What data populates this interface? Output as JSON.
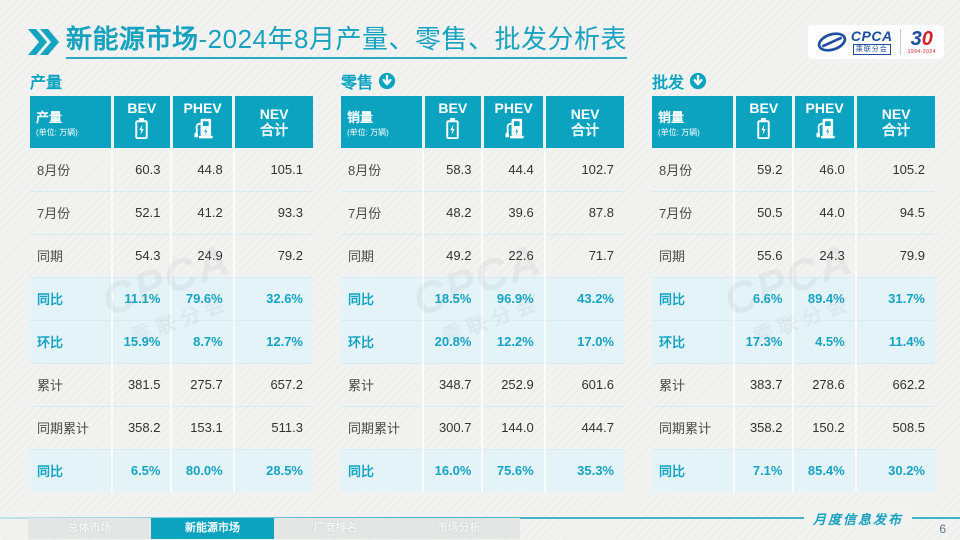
{
  "header": {
    "title_bold": "新能源市场",
    "title_rest": "-2024年8月产量、零售、批发分析表",
    "logo": {
      "cpca": "CPCA",
      "cpca_sub": "乘联分会",
      "anniv_3": "3",
      "anniv_0": "0",
      "anniv_years": "1994-2024"
    }
  },
  "watermark": {
    "line1": "CPCA",
    "line2": "乘联分会"
  },
  "tables": [
    {
      "section": "产量",
      "arrow": false,
      "corner_label": "产量",
      "corner_unit": "(单位: 万辆)",
      "columns": [
        {
          "label": "BEV",
          "icon": "battery-icon"
        },
        {
          "label": "PHEV",
          "icon": "ev-charger-icon"
        },
        {
          "label": "NEV",
          "sub": "合计"
        }
      ],
      "rows": [
        {
          "label": "8月份",
          "values": [
            "60.3",
            "44.8",
            "105.1"
          ],
          "highlight": false
        },
        {
          "label": "7月份",
          "values": [
            "52.1",
            "41.2",
            "93.3"
          ],
          "highlight": false
        },
        {
          "label": "同期",
          "values": [
            "54.3",
            "24.9",
            "79.2"
          ],
          "highlight": false
        },
        {
          "label": "同比",
          "values": [
            "11.1%",
            "79.6%",
            "32.6%"
          ],
          "highlight": true
        },
        {
          "label": "环比",
          "values": [
            "15.9%",
            "8.7%",
            "12.7%"
          ],
          "highlight": true
        },
        {
          "label": "累计",
          "values": [
            "381.5",
            "275.7",
            "657.2"
          ],
          "highlight": false
        },
        {
          "label": "同期累计",
          "values": [
            "358.2",
            "153.1",
            "511.3"
          ],
          "highlight": false
        },
        {
          "label": "同比",
          "values": [
            "6.5%",
            "80.0%",
            "28.5%"
          ],
          "highlight": true
        }
      ]
    },
    {
      "section": "零售",
      "arrow": true,
      "corner_label": "销量",
      "corner_unit": "(单位: 万辆)",
      "columns": [
        {
          "label": "BEV",
          "icon": "battery-icon"
        },
        {
          "label": "PHEV",
          "icon": "ev-charger-icon"
        },
        {
          "label": "NEV",
          "sub": "合计"
        }
      ],
      "rows": [
        {
          "label": "8月份",
          "values": [
            "58.3",
            "44.4",
            "102.7"
          ],
          "highlight": false
        },
        {
          "label": "7月份",
          "values": [
            "48.2",
            "39.6",
            "87.8"
          ],
          "highlight": false
        },
        {
          "label": "同期",
          "values": [
            "49.2",
            "22.6",
            "71.7"
          ],
          "highlight": false
        },
        {
          "label": "同比",
          "values": [
            "18.5%",
            "96.9%",
            "43.2%"
          ],
          "highlight": true
        },
        {
          "label": "环比",
          "values": [
            "20.8%",
            "12.2%",
            "17.0%"
          ],
          "highlight": true
        },
        {
          "label": "累计",
          "values": [
            "348.7",
            "252.9",
            "601.6"
          ],
          "highlight": false
        },
        {
          "label": "同期累计",
          "values": [
            "300.7",
            "144.0",
            "444.7"
          ],
          "highlight": false
        },
        {
          "label": "同比",
          "values": [
            "16.0%",
            "75.6%",
            "35.3%"
          ],
          "highlight": true
        }
      ]
    },
    {
      "section": "批发",
      "arrow": true,
      "corner_label": "销量",
      "corner_unit": "(单位: 万辆)",
      "columns": [
        {
          "label": "BEV",
          "icon": "battery-icon"
        },
        {
          "label": "PHEV",
          "icon": "ev-charger-icon"
        },
        {
          "label": "NEV",
          "sub": "合计"
        }
      ],
      "rows": [
        {
          "label": "8月份",
          "values": [
            "59.2",
            "46.0",
            "105.2"
          ],
          "highlight": false
        },
        {
          "label": "7月份",
          "values": [
            "50.5",
            "44.0",
            "94.5"
          ],
          "highlight": false
        },
        {
          "label": "同期",
          "values": [
            "55.6",
            "24.3",
            "79.9"
          ],
          "highlight": false
        },
        {
          "label": "同比",
          "values": [
            "6.6%",
            "89.4%",
            "31.7%"
          ],
          "highlight": true
        },
        {
          "label": "环比",
          "values": [
            "17.3%",
            "4.5%",
            "11.4%"
          ],
          "highlight": true
        },
        {
          "label": "累计",
          "values": [
            "383.7",
            "278.6",
            "662.2"
          ],
          "highlight": false
        },
        {
          "label": "同期累计",
          "values": [
            "358.2",
            "150.2",
            "508.5"
          ],
          "highlight": false
        },
        {
          "label": "同比",
          "values": [
            "7.1%",
            "85.4%",
            "30.2%"
          ],
          "highlight": true
        }
      ]
    }
  ],
  "footer": {
    "tabs": [
      {
        "label": "总体市场",
        "active": false
      },
      {
        "label": "新能源市场",
        "active": true
      },
      {
        "label": "厂商排名",
        "active": false
      },
      {
        "label": "市场分析",
        "active": false
      }
    ],
    "release_label": "月度信息发布",
    "page_number": "6"
  },
  "colors": {
    "teal": "#0ba3bf",
    "title_teal": "#17a2be",
    "highlight_bg": "#e3f3f8",
    "highlight_text": "#16a4c2",
    "logo_blue": "#1c4fa0",
    "logo_red": "#d2232a"
  }
}
